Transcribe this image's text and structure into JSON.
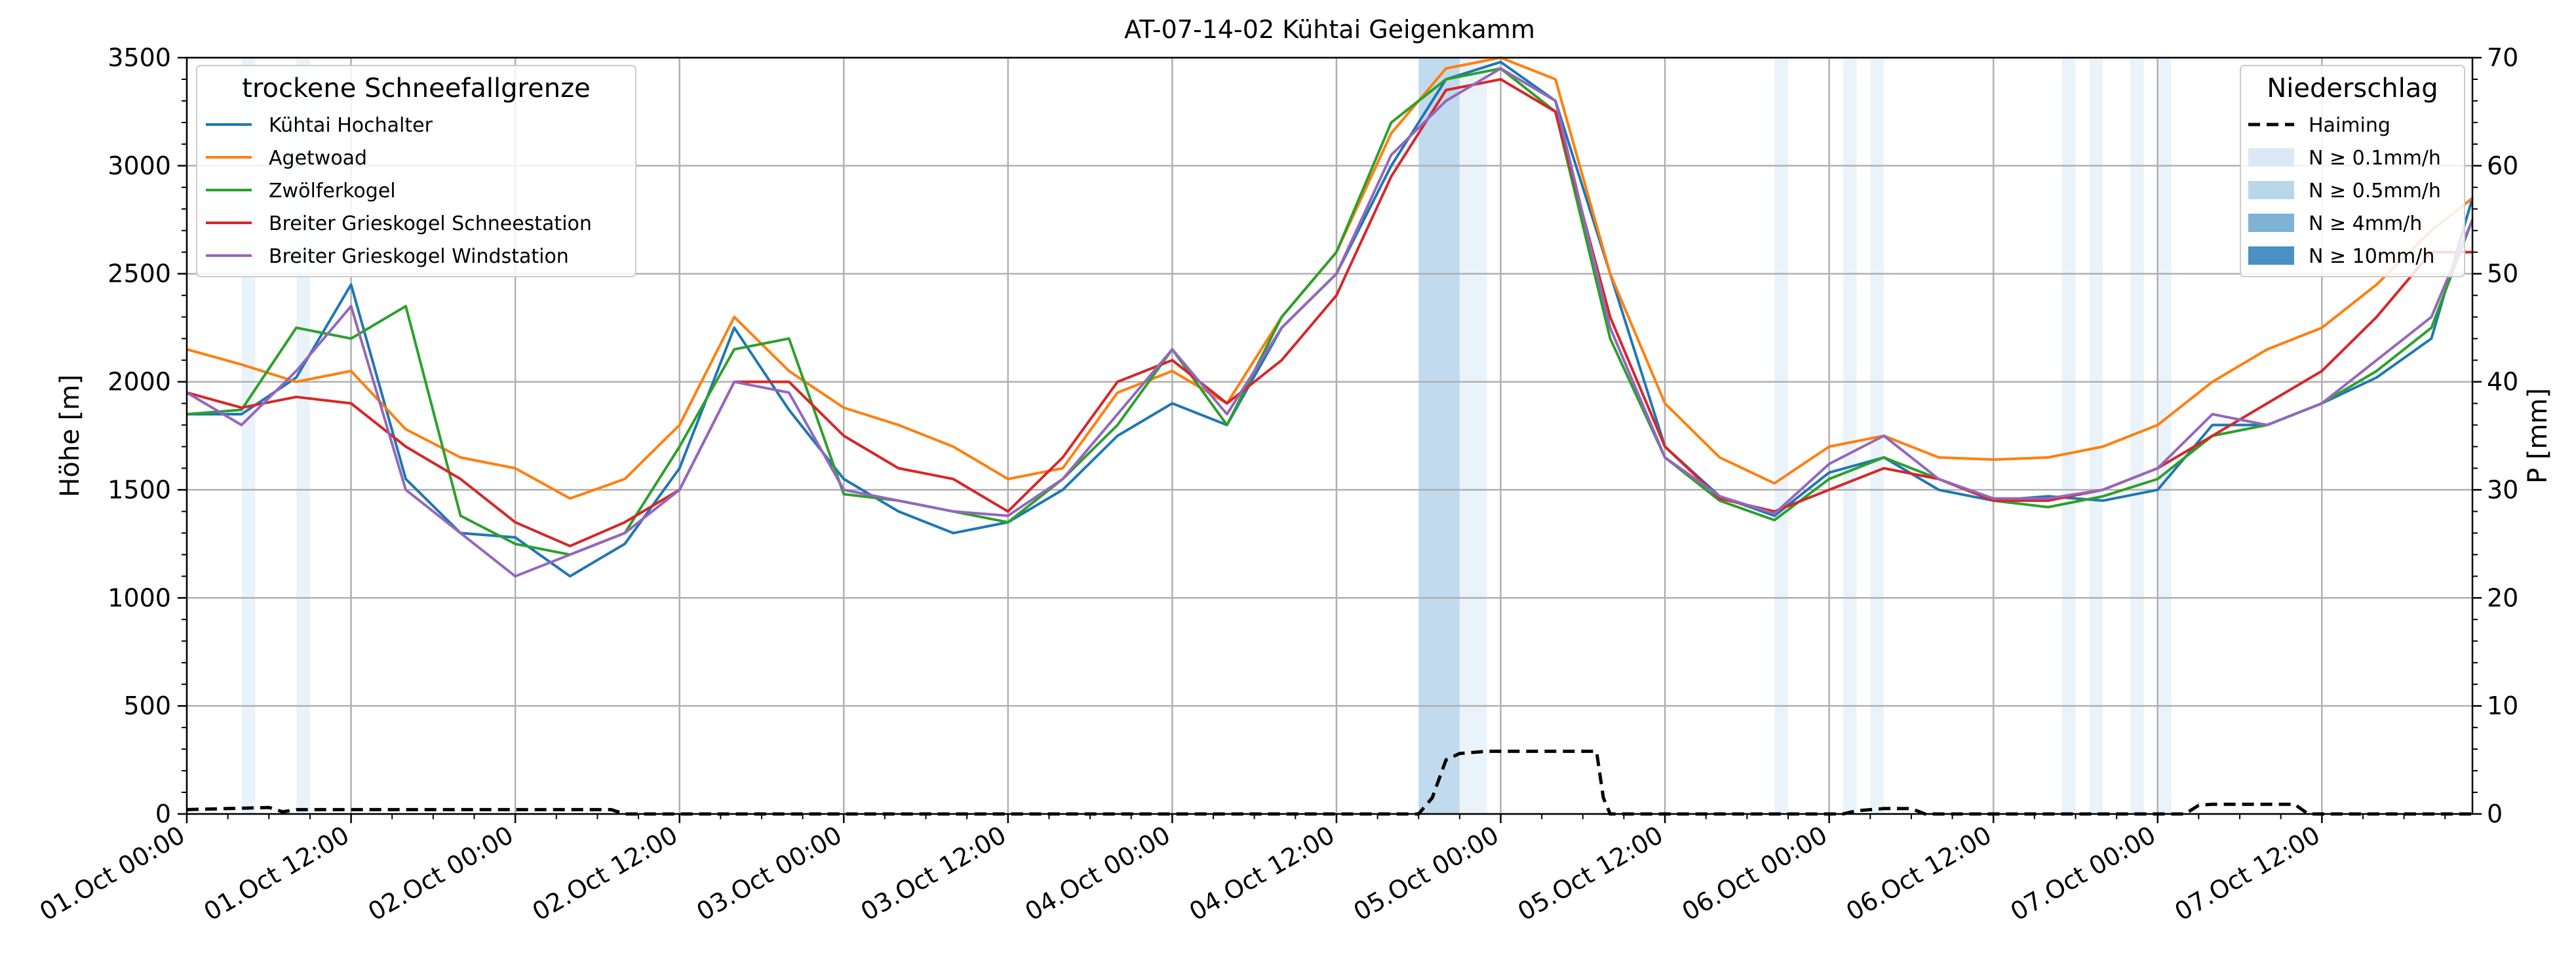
{
  "chart_data": {
    "type": "line",
    "title": "AT-07-14-02 Kühtai Geigenkamm",
    "ylabel": "Höhe [m]",
    "y2label": "P [mm]",
    "ylim": [
      0,
      3500
    ],
    "y2lim": [
      0,
      70
    ],
    "yticks": [
      0,
      500,
      1000,
      1500,
      2000,
      2500,
      3000,
      3500
    ],
    "y2ticks": [
      0,
      10,
      20,
      30,
      40,
      50,
      60,
      70
    ],
    "xlim_hours": [
      0,
      167
    ],
    "xticks": [
      {
        "h": 0,
        "label": "01.Oct 00:00"
      },
      {
        "h": 12,
        "label": "01.Oct 12:00"
      },
      {
        "h": 24,
        "label": "02.Oct 00:00"
      },
      {
        "h": 36,
        "label": "02.Oct 12:00"
      },
      {
        "h": 48,
        "label": "03.Oct 00:00"
      },
      {
        "h": 60,
        "label": "03.Oct 12:00"
      },
      {
        "h": 72,
        "label": "04.Oct 00:00"
      },
      {
        "h": 84,
        "label": "04.Oct 12:00"
      },
      {
        "h": 96,
        "label": "05.Oct 00:00"
      },
      {
        "h": 108,
        "label": "05.Oct 12:00"
      },
      {
        "h": 120,
        "label": "06.Oct 00:00"
      },
      {
        "h": 132,
        "label": "06.Oct 12:00"
      },
      {
        "h": 144,
        "label": "07.Oct 00:00"
      },
      {
        "h": 156,
        "label": "07.Oct 12:00"
      }
    ],
    "grid": true,
    "legend_left": {
      "title": "trockene Schneefallgrenze",
      "placement": "upper-left"
    },
    "legend_right": {
      "title": "Niederschlag",
      "placement": "upper-right",
      "entries": [
        {
          "label": "Haiming",
          "style": "dashed",
          "color": "#000000"
        },
        {
          "label": "N ≥ 0.1mm/h",
          "color": "#dbe9f6"
        },
        {
          "label": "N ≥ 0.5mm/h",
          "color": "#bad6eb"
        },
        {
          "label": "N ≥ 4mm/h",
          "color": "#7fb3d5"
        },
        {
          "label": "N ≥ 10mm/h",
          "color": "#4a90c2"
        }
      ]
    },
    "precip_bands": [
      {
        "x0": 4,
        "x1": 5,
        "level": 1
      },
      {
        "x0": 8,
        "x1": 9,
        "level": 1
      },
      {
        "x0": 90,
        "x1": 93,
        "level": 2
      },
      {
        "x0": 93,
        "x1": 95,
        "level": 1
      },
      {
        "x0": 116,
        "x1": 117,
        "level": 1
      },
      {
        "x0": 121,
        "x1": 122,
        "level": 1
      },
      {
        "x0": 123,
        "x1": 124,
        "level": 1
      },
      {
        "x0": 137,
        "x1": 138,
        "level": 1
      },
      {
        "x0": 139,
        "x1": 140,
        "level": 1
      },
      {
        "x0": 142,
        "x1": 143,
        "level": 1
      },
      {
        "x0": 144,
        "x1": 145,
        "level": 1
      }
    ],
    "precip_line": {
      "name": "Haiming",
      "x": [
        0,
        6,
        7,
        8,
        31,
        32,
        90,
        91,
        92,
        93,
        95,
        98,
        103,
        103.5,
        104,
        121,
        122,
        124,
        126,
        127,
        146,
        147,
        148,
        153,
        154,
        155,
        167
      ],
      "y": [
        0.4,
        0.6,
        0.2,
        0.4,
        0.4,
        0,
        0,
        1.5,
        5,
        5.6,
        5.8,
        5.8,
        5.8,
        1.5,
        0,
        0,
        0.3,
        0.5,
        0.5,
        0,
        0,
        0.8,
        0.9,
        0.9,
        0.9,
        0,
        0
      ]
    },
    "x": [
      0,
      4,
      8,
      12,
      16,
      20,
      24,
      28,
      32,
      36,
      40,
      44,
      48,
      52,
      56,
      60,
      64,
      68,
      72,
      76,
      80,
      84,
      88,
      92,
      96,
      100,
      104,
      108,
      112,
      116,
      120,
      124,
      128,
      132,
      136,
      140,
      144,
      148,
      152,
      156,
      160,
      164,
      167
    ],
    "series": [
      {
        "name": "Kühtai Hochalter",
        "color": "#1f77b4",
        "values": [
          1850,
          1850,
          2020,
          2450,
          1550,
          1300,
          1280,
          1100,
          1250,
          1600,
          2250,
          1870,
          1550,
          1400,
          1300,
          1350,
          1500,
          1750,
          1900,
          1800,
          2250,
          2500,
          3000,
          3400,
          3480,
          3300,
          2500,
          1700,
          1470,
          1380,
          1580,
          1650,
          1500,
          1450,
          1470,
          1450,
          1500,
          1800,
          1800,
          1900,
          2020,
          2200,
          2850
        ]
      },
      {
        "name": "Agetwoad",
        "color": "#ff7f0e",
        "values": [
          2150,
          2080,
          2000,
          2050,
          1780,
          1650,
          1600,
          1460,
          1550,
          1800,
          2300,
          2050,
          1880,
          1800,
          1700,
          1550,
          1600,
          1950,
          2050,
          1900,
          2300,
          2600,
          3150,
          3450,
          3500,
          3400,
          2500,
          1900,
          1650,
          1530,
          1700,
          1750,
          1650,
          1640,
          1650,
          1700,
          1800,
          2000,
          2150,
          2250,
          2450,
          2700,
          2850
        ]
      },
      {
        "name": "Zwölferkogel",
        "color": "#2ca02c",
        "values": [
          1850,
          1870,
          2250,
          2200,
          2350,
          1380,
          1250,
          1200,
          1300,
          1700,
          2150,
          2200,
          1480,
          1450,
          1400,
          1350,
          1550,
          1800,
          2150,
          1800,
          2300,
          2600,
          3200,
          3400,
          3450,
          3250,
          2200,
          1650,
          1450,
          1360,
          1550,
          1650,
          1550,
          1450,
          1420,
          1470,
          1550,
          1750,
          1800,
          1900,
          2050,
          2250,
          2750
        ]
      },
      {
        "name": "Breiter Grieskogel Schneestation",
        "color": "#d62728",
        "values": [
          1950,
          1880,
          1930,
          1900,
          1700,
          1550,
          1350,
          1240,
          1350,
          1500,
          2000,
          2000,
          1750,
          1600,
          1550,
          1400,
          1650,
          2000,
          2100,
          1900,
          2100,
          2400,
          2950,
          3350,
          3400,
          3250,
          2300,
          1700,
          1460,
          1400,
          1500,
          1600,
          1550,
          1450,
          1450,
          1500,
          1600,
          1750,
          1900,
          2050,
          2300,
          2600,
          2600
        ]
      },
      {
        "name": "Breiter Grieskogel Windstation",
        "color": "#9467bd",
        "values": [
          1950,
          1800,
          2050,
          2350,
          1500,
          1300,
          1100,
          1200,
          1300,
          1500,
          2000,
          1950,
          1500,
          1450,
          1400,
          1380,
          1550,
          1850,
          2150,
          1850,
          2250,
          2500,
          3050,
          3300,
          3450,
          3300,
          2250,
          1650,
          1470,
          1390,
          1620,
          1750,
          1550,
          1460,
          1460,
          1500,
          1600,
          1850,
          1800,
          1900,
          2100,
          2300,
          2750
        ]
      }
    ]
  }
}
